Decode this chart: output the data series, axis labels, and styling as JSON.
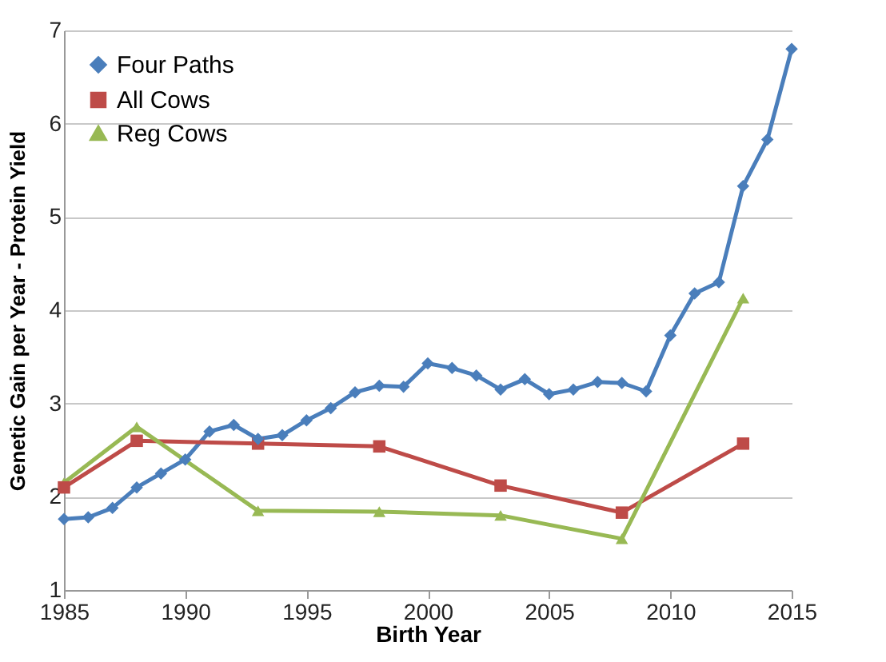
{
  "chart_data": {
    "type": "line",
    "xlabel": "Birth Year",
    "ylabel": "Genetic Gain per Year -  Protein Yield",
    "xlim": [
      1985,
      2015
    ],
    "xticks": [
      1985,
      1990,
      1995,
      2000,
      2005,
      2010,
      2015
    ],
    "ylim": [
      1,
      7
    ],
    "yticks": [
      1,
      2,
      3,
      4,
      5,
      6,
      7
    ],
    "grid": "y",
    "legend": "top left",
    "series": [
      {
        "name": "Four Paths",
        "color": "#4a7ebb",
        "marker": "diamond",
        "x": [
          1985,
          1986,
          1987,
          1988,
          1989,
          1990,
          1991,
          1992,
          1993,
          1994,
          1995,
          1996,
          1997,
          1998,
          1999,
          2000,
          2001,
          2002,
          2003,
          2004,
          2005,
          2006,
          2007,
          2008,
          2009,
          2010,
          2011,
          2012,
          2013,
          2014,
          2015
        ],
        "values": [
          1.76,
          1.78,
          1.88,
          2.1,
          2.25,
          2.4,
          2.7,
          2.77,
          2.62,
          2.66,
          2.82,
          2.95,
          3.12,
          3.19,
          3.18,
          3.43,
          3.38,
          3.3,
          3.15,
          3.26,
          3.1,
          3.15,
          3.23,
          3.22,
          3.13,
          3.73,
          4.18,
          4.3,
          5.33,
          5.83,
          6.8
        ]
      },
      {
        "name": "All Cows",
        "color": "#be4b48",
        "marker": "square",
        "x": [
          1985,
          1988,
          1993,
          1998,
          2003,
          2008,
          2013
        ],
        "values": [
          2.1,
          2.6,
          2.57,
          2.54,
          2.12,
          1.83,
          2.57
        ]
      },
      {
        "name": "Reg Cows",
        "color": "#98b954",
        "marker": "triangle",
        "x": [
          1985,
          1988,
          1993,
          1998,
          2003,
          2008,
          2013
        ],
        "values": [
          2.15,
          2.75,
          1.85,
          1.84,
          1.8,
          1.55,
          4.13
        ]
      }
    ]
  }
}
